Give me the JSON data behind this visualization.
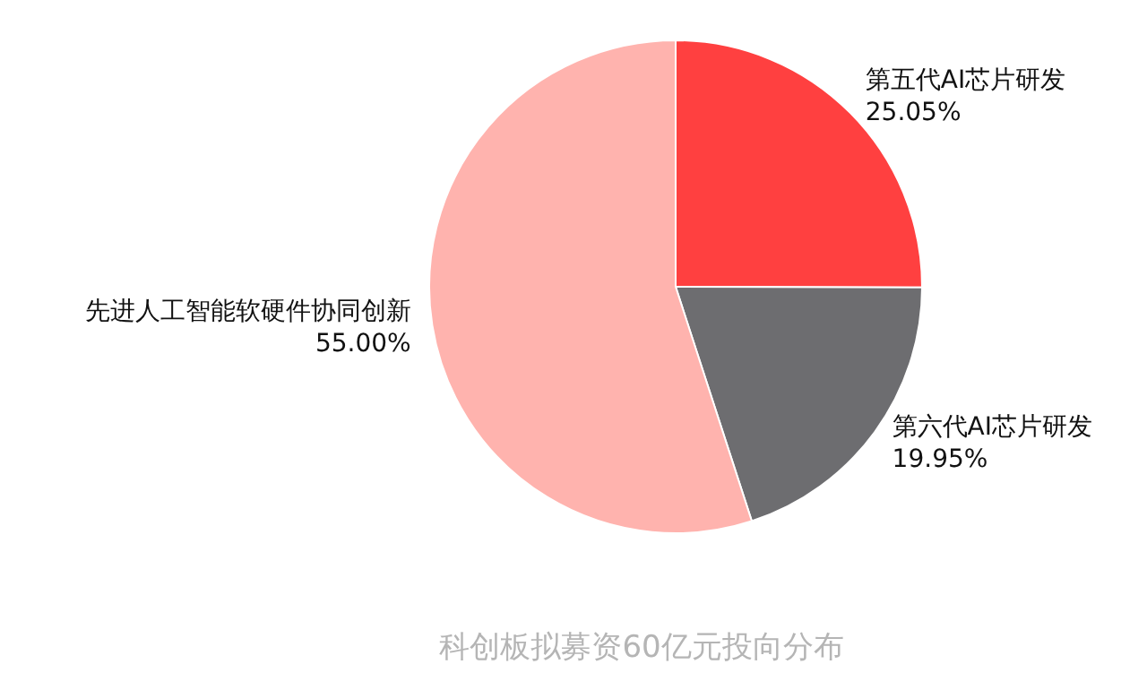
{
  "chart_data": {
    "type": "pie",
    "title": "科创板拟募资60亿元投向分布",
    "categories": [
      "第五代AI芯片研发",
      "第六代AI芯片研发",
      "先进人工智能软硬件协同创新"
    ],
    "values": [
      25.05,
      19.95,
      55.0
    ],
    "colors": [
      "#ff4040",
      "#6d6d70",
      "#ffb3ae"
    ],
    "value_labels": [
      "25.05%",
      "19.95%",
      "55.00%"
    ],
    "legend": false
  }
}
